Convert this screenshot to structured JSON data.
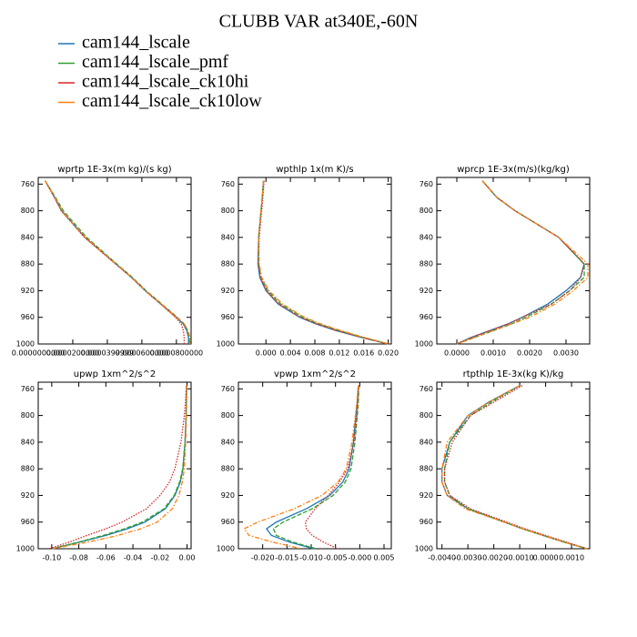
{
  "title": "CLUBB VAR at340E,-60N",
  "legend": [
    {
      "name": "cam144_lscale",
      "color": "#1f77b4",
      "dash": "solid"
    },
    {
      "name": "cam144_lscale_pmf",
      "color": "#2ca02c",
      "dash": "dashed"
    },
    {
      "name": "cam144_lscale_ck10hi",
      "color": "#d62728",
      "dash": "dotted"
    },
    {
      "name": "cam144_lscale_ck10low",
      "color": "#ff7f0e",
      "dash": "dashdot"
    }
  ],
  "chart_data": [
    {
      "type": "line",
      "title": "wprtp  1E-3x(m kg)/(s kg)",
      "y": [
        755,
        780,
        800,
        840,
        880,
        900,
        920,
        940,
        960,
        970,
        980,
        990,
        1000
      ],
      "ylim": [
        750,
        1000
      ],
      "yticks": [
        760,
        800,
        840,
        880,
        920,
        960,
        1000
      ],
      "y_inverted": true,
      "xlim": [
        0,
        8.85e-05
      ],
      "xticks": [
        {
          "value": 0,
          "label": "0.0000000000"
        },
        {
          "value": 2e-05,
          "label": "0.0000200000"
        },
        {
          "value": 4e-05,
          "label": "0.0000399999"
        },
        {
          "value": 6e-05,
          "label": "0.0000600000"
        },
        {
          "value": 8e-05,
          "label": "0.0000800000"
        }
      ],
      "series": [
        {
          "values": [
            4e-06,
            9.5e-06,
            1.35e-05,
            2.7e-05,
            4.5e-05,
            5.4e-05,
            6.2e-05,
            7.1e-05,
            8e-05,
            8.4e-05,
            8.6e-05,
            8.7e-05,
            8.7e-05
          ]
        },
        {
          "values": [
            4e-06,
            1e-05,
            1.45e-05,
            2.8e-05,
            4.55e-05,
            5.45e-05,
            6.25e-05,
            7.15e-05,
            8.05e-05,
            8.45e-05,
            8.65e-05,
            8.75e-05,
            8.75e-05
          ]
        },
        {
          "values": [
            4e-06,
            9.3e-06,
            1.33e-05,
            2.68e-05,
            4.48e-05,
            5.38e-05,
            6.18e-05,
            7.08e-05,
            7.95e-05,
            8.28e-05,
            8.4e-05,
            8.45e-05,
            8.45e-05
          ]
        },
        {
          "values": [
            4e-06,
            9.7e-06,
            1.38e-05,
            2.72e-05,
            4.52e-05,
            5.42e-05,
            6.22e-05,
            7.12e-05,
            8.02e-05,
            8.45e-05,
            8.68e-05,
            8.78e-05,
            8.8e-05
          ]
        }
      ]
    },
    {
      "type": "line",
      "title": "wpthlp  1x(m K)/s",
      "y": [
        755,
        780,
        800,
        840,
        880,
        900,
        920,
        940,
        960,
        970,
        980,
        990,
        1000
      ],
      "ylim": [
        750,
        1000
      ],
      "yticks": [
        760,
        800,
        840,
        880,
        920,
        960,
        1000
      ],
      "y_inverted": true,
      "xlim": [
        -0.0045,
        0.0205
      ],
      "xticks": [
        {
          "value": 0,
          "label": "0.000"
        },
        {
          "value": 0.004,
          "label": "0.004"
        },
        {
          "value": 0.008,
          "label": "0.008"
        },
        {
          "value": 0.012,
          "label": "0.012"
        },
        {
          "value": 0.016,
          "label": "0.016"
        },
        {
          "value": 0.02,
          "label": "0.020"
        }
      ],
      "series": [
        {
          "values": [
            -0.0004,
            -0.0006,
            -0.0008,
            -0.0012,
            -0.0013,
            -0.001,
            0,
            0.002,
            0.0055,
            0.0082,
            0.0115,
            0.0155,
            0.02
          ]
        },
        {
          "values": [
            -0.0004,
            -0.0006,
            -0.0008,
            -0.0012,
            -0.0012,
            -0.0008,
            0.0003,
            0.0024,
            0.006,
            0.0087,
            0.012,
            0.0158,
            0.02
          ]
        },
        {
          "values": [
            -0.0003,
            -0.0005,
            -0.0007,
            -0.0011,
            -0.0012,
            -0.0009,
            0.0001,
            0.0021,
            0.0056,
            0.0083,
            0.0116,
            0.0156,
            0.02
          ]
        },
        {
          "values": [
            -0.0004,
            -0.0006,
            -0.0008,
            -0.0012,
            -0.0011,
            -0.0007,
            0.0005,
            0.0027,
            0.0063,
            0.009,
            0.0123,
            0.016,
            0.0201
          ]
        }
      ]
    },
    {
      "type": "line",
      "title": "wprcp  1E-3x(m/s)(kg/kg)",
      "y": [
        755,
        780,
        800,
        840,
        880,
        900,
        920,
        940,
        960,
        970,
        980,
        990,
        1000
      ],
      "ylim": [
        750,
        1000
      ],
      "yticks": [
        760,
        800,
        840,
        880,
        920,
        960,
        1000
      ],
      "y_inverted": true,
      "xlim": [
        -0.00055,
        0.00365
      ],
      "xticks": [
        {
          "value": 0,
          "label": "0.0000"
        },
        {
          "value": 0.001,
          "label": "0.0010"
        },
        {
          "value": 0.002,
          "label": "0.0020"
        },
        {
          "value": 0.003,
          "label": "0.0030"
        }
      ],
      "series": [
        {
          "values": [
            0.0007,
            0.0011,
            0.0016,
            0.0028,
            0.0035,
            0.0034,
            0.003,
            0.0025,
            0.0018,
            0.0014,
            0.0009,
            0.0004,
            0
          ]
        },
        {
          "values": [
            0.0007,
            0.0011,
            0.0016,
            0.0028,
            0.0035,
            0.0035,
            0.0031,
            0.0026,
            0.0019,
            0.0015,
            0.001,
            0.0005,
            0
          ]
        },
        {
          "values": [
            0.0007,
            0.0011,
            0.0016,
            0.0028,
            0.0035,
            0.0034,
            0.0031,
            0.0026,
            0.0018,
            0.0014,
            0.0009,
            0.0004,
            0
          ]
        },
        {
          "values": [
            0.0007,
            0.0011,
            0.0016,
            0.0028,
            0.0036,
            0.0036,
            0.0032,
            0.0027,
            0.002,
            0.0015,
            0.001,
            0.0005,
            0
          ]
        }
      ]
    },
    {
      "type": "line",
      "title": "upwp  1xm^2/s^2",
      "y": [
        755,
        780,
        800,
        840,
        880,
        900,
        920,
        940,
        960,
        970,
        980,
        990,
        1000
      ],
      "ylim": [
        750,
        1000
      ],
      "yticks": [
        760,
        800,
        840,
        880,
        920,
        960,
        1000
      ],
      "y_inverted": true,
      "xlim": [
        -0.11,
        0.003
      ],
      "xticks": [
        {
          "value": -0.1,
          "label": "-0.10"
        },
        {
          "value": -0.08,
          "label": "-0.08"
        },
        {
          "value": -0.06,
          "label": "-0.06"
        },
        {
          "value": -0.04,
          "label": "-0.04"
        },
        {
          "value": -0.02,
          "label": "-0.02"
        },
        {
          "value": 0,
          "label": "0.00"
        }
      ],
      "series": [
        {
          "values": [
            -0.0003,
            -0.0005,
            -0.0007,
            -0.0015,
            -0.003,
            -0.005,
            -0.009,
            -0.016,
            -0.031,
            -0.044,
            -0.06,
            -0.079,
            -0.1
          ]
        },
        {
          "values": [
            -0.0003,
            -0.0005,
            -0.0007,
            -0.0015,
            -0.0032,
            -0.0055,
            -0.0095,
            -0.017,
            -0.033,
            -0.046,
            -0.062,
            -0.08,
            -0.1
          ]
        },
        {
          "values": [
            -0.0005,
            -0.0012,
            -0.002,
            -0.0045,
            -0.009,
            -0.013,
            -0.02,
            -0.03,
            -0.048,
            -0.06,
            -0.074,
            -0.087,
            -0.102
          ]
        },
        {
          "values": [
            -0.0002,
            -0.0003,
            -0.0005,
            -0.001,
            -0.002,
            -0.0035,
            -0.006,
            -0.011,
            -0.022,
            -0.034,
            -0.051,
            -0.073,
            -0.1
          ]
        }
      ]
    },
    {
      "type": "line",
      "title": "vpwp  1xm^2/s^2",
      "y": [
        755,
        780,
        800,
        840,
        880,
        900,
        920,
        940,
        960,
        970,
        980,
        990,
        1000
      ],
      "ylim": [
        750,
        1000
      ],
      "yticks": [
        760,
        800,
        840,
        880,
        920,
        960,
        1000
      ],
      "y_inverted": true,
      "xlim": [
        -0.025,
        0.0065
      ],
      "xticks": [
        {
          "value": -0.02,
          "label": "-0.020"
        },
        {
          "value": -0.015,
          "label": "-0.015"
        },
        {
          "value": -0.01,
          "label": "-0.010"
        },
        {
          "value": -0.005,
          "label": "-0.005"
        },
        {
          "value": 0,
          "label": "-0.000"
        },
        {
          "value": 0.005,
          "label": "0.005"
        }
      ],
      "series": [
        {
          "values": [
            -0.0003,
            -0.0005,
            -0.0008,
            -0.0013,
            -0.0022,
            -0.0035,
            -0.0062,
            -0.011,
            -0.0172,
            -0.0192,
            -0.0182,
            -0.0145,
            -0.0095
          ]
        },
        {
          "values": [
            -0.0002,
            -0.0003,
            -0.0005,
            -0.001,
            -0.0018,
            -0.003,
            -0.0055,
            -0.0098,
            -0.0158,
            -0.0178,
            -0.0172,
            -0.0138,
            -0.009
          ]
        },
        {
          "values": [
            -0.0002,
            -0.0004,
            -0.0006,
            -0.0012,
            -0.0025,
            -0.0042,
            -0.0065,
            -0.0092,
            -0.0112,
            -0.011,
            -0.0098,
            -0.0075,
            -0.0045
          ]
        },
        {
          "values": [
            -0.0003,
            -0.0006,
            -0.0009,
            -0.0016,
            -0.0028,
            -0.0045,
            -0.0078,
            -0.0135,
            -0.021,
            -0.0238,
            -0.0228,
            -0.018,
            -0.012
          ]
        }
      ]
    },
    {
      "type": "line",
      "title": "rtpthlp  1E-3x(kg K)/kg",
      "y": [
        755,
        780,
        800,
        840,
        880,
        900,
        920,
        940,
        960,
        970,
        980,
        990,
        1000
      ],
      "ylim": [
        750,
        1000
      ],
      "yticks": [
        760,
        800,
        840,
        880,
        920,
        960,
        1000
      ],
      "y_inverted": true,
      "xlim": [
        -0.0042,
        0.0017
      ],
      "xticks": [
        {
          "value": -0.004,
          "label": "-0.0040"
        },
        {
          "value": -0.003,
          "label": "-0.0030"
        },
        {
          "value": -0.002,
          "label": "-0.0020"
        },
        {
          "value": -0.001,
          "label": "-0.0010"
        },
        {
          "value": 0,
          "label": "0.0000"
        },
        {
          "value": 0.001,
          "label": "0.0010"
        }
      ],
      "series": [
        {
          "values": [
            -0.001,
            -0.0022,
            -0.003,
            -0.0037,
            -0.004,
            -0.004,
            -0.0038,
            -0.003,
            -0.0016,
            -0.0009,
            -0.0001,
            0.0007,
            0.0016
          ]
        },
        {
          "values": [
            -0.001,
            -0.0021,
            -0.0029,
            -0.0037,
            -0.0039,
            -0.0039,
            -0.0037,
            -0.003,
            -0.0016,
            -0.0009,
            -0.0001,
            0.0007,
            0.0016
          ]
        },
        {
          "values": [
            -0.0009,
            -0.002,
            -0.0029,
            -0.0036,
            -0.0039,
            -0.0039,
            -0.0037,
            -0.0029,
            -0.0015,
            -0.0008,
            0,
            0.0008,
            0.0016
          ]
        },
        {
          "values": [
            -0.001,
            -0.0022,
            -0.003,
            -0.0038,
            -0.004,
            -0.004,
            -0.0038,
            -0.0031,
            -0.0016,
            -0.0009,
            -0.0001,
            0.0007,
            0.0016
          ]
        }
      ]
    }
  ]
}
